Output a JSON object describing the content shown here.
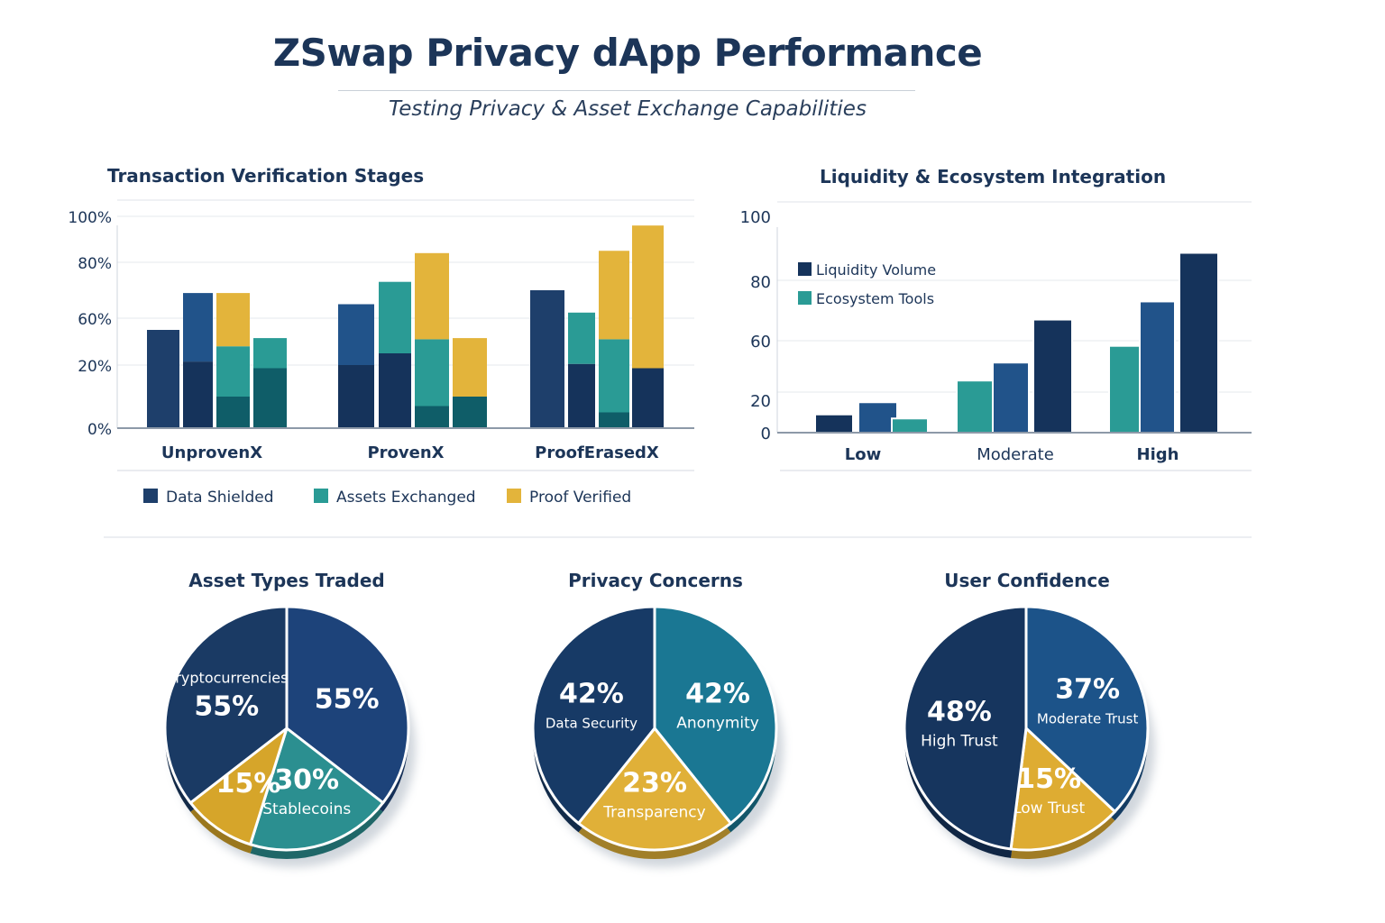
{
  "header": {
    "title": "ZSwap Privacy dApp Performance",
    "subtitle": "Testing Privacy & Asset Exchange Capabilities"
  },
  "colors": {
    "navy": "#1e3f6b",
    "navy_dark": "#15335b",
    "blue": "#21538a",
    "teal": "#2a9b95",
    "teal_dark": "#0f5d68",
    "gold": "#e3b43b",
    "text": "#1c3558"
  },
  "chart_data": [
    {
      "type": "bar",
      "title": "Transaction Verification Stages",
      "stacked": true,
      "grid": true,
      "legend_position": "bottom",
      "yticks": [
        "0%",
        "20%",
        "60%",
        "80%",
        "100%"
      ],
      "ytick_values": [
        0,
        20,
        60,
        80,
        100
      ],
      "ylim": [
        0,
        100
      ],
      "categories": [
        "UnprovenX",
        "ProvenX",
        "ProofErasedX"
      ],
      "legend": [
        {
          "name": "Data Shielded",
          "color": "#1e3f6b"
        },
        {
          "name": "Assets Exchanged",
          "color": "#2a9b95"
        },
        {
          "name": "Proof Verified",
          "color": "#e3b43b"
        }
      ],
      "bars": [
        [
          [
            {
              "series": "Data Shielded",
              "tone": "navy",
              "to": 50
            }
          ],
          [
            {
              "series": "Data Shielded",
              "tone": "navy_dark",
              "to": 23
            },
            {
              "series": "Data Shielded",
              "tone": "blue",
              "to": 69
            }
          ],
          [
            {
              "series": "Assets Exchanged",
              "tone": "teal_dark",
              "to": 10
            },
            {
              "series": "Assets Exchanged",
              "tone": "teal",
              "to": 36
            },
            {
              "series": "Proof Verified",
              "tone": "gold",
              "to": 69
            }
          ],
          [
            {
              "series": "Assets Exchanged",
              "tone": "teal_dark",
              "to": 19
            },
            {
              "series": "Assets Exchanged",
              "tone": "teal",
              "to": 43
            }
          ]
        ],
        [
          [
            {
              "series": "Data Shielded",
              "tone": "navy_dark",
              "to": 20
            },
            {
              "series": "Data Shielded",
              "tone": "blue",
              "to": 65
            }
          ],
          [
            {
              "series": "Data Shielded",
              "tone": "navy_dark",
              "to": 30
            },
            {
              "series": "Assets Exchanged",
              "tone": "teal",
              "to": 73
            }
          ],
          [
            {
              "series": "Assets Exchanged",
              "tone": "teal_dark",
              "to": 7
            },
            {
              "series": "Assets Exchanged",
              "tone": "teal",
              "to": 42
            },
            {
              "series": "Proof Verified",
              "tone": "gold",
              "to": 84
            }
          ],
          [
            {
              "series": "Assets Exchanged",
              "tone": "teal_dark",
              "to": 10
            },
            {
              "series": "Proof Verified",
              "tone": "gold",
              "to": 43
            }
          ]
        ],
        [
          [
            {
              "series": "Data Shielded",
              "tone": "navy",
              "to": 70
            }
          ],
          [
            {
              "series": "Data Shielded",
              "tone": "navy_dark",
              "to": 21
            },
            {
              "series": "Assets Exchanged",
              "tone": "teal",
              "to": 62
            }
          ],
          [
            {
              "series": "Assets Exchanged",
              "tone": "teal_dark",
              "to": 5
            },
            {
              "series": "Assets Exchanged",
              "tone": "teal",
              "to": 42
            },
            {
              "series": "Proof Verified",
              "tone": "gold",
              "to": 85
            }
          ],
          [
            {
              "series": "Data Shielded",
              "tone": "navy_dark",
              "to": 19
            },
            {
              "series": "Proof Verified",
              "tone": "gold",
              "to": 96
            }
          ]
        ]
      ]
    },
    {
      "type": "bar",
      "title": "Liquidity & Ecosystem Integration",
      "grid": true,
      "legend_position": "top-left",
      "yticks": [
        "0",
        "20",
        "60",
        "80",
        "100"
      ],
      "ytick_values": [
        0,
        20,
        60,
        80,
        100
      ],
      "ylim": [
        0,
        100
      ],
      "categories": [
        "Low",
        "Moderate",
        "High"
      ],
      "legend": [
        {
          "name": "Liquidity Volume",
          "color": "#15335b"
        },
        {
          "name": "Ecosystem Tools",
          "color": "#2a9b95"
        }
      ],
      "bars": [
        [
          {
            "series": "Liquidity Volume",
            "tone": "navy_dark",
            "value": 9
          },
          {
            "series": "Liquidity Volume",
            "tone": "blue",
            "value": 15
          },
          {
            "series": "Ecosystem Tools",
            "tone": "teal",
            "value": 7
          }
        ],
        [
          {
            "series": "Ecosystem Tools",
            "tone": "teal",
            "value": 29
          },
          {
            "series": "Liquidity Volume",
            "tone": "blue",
            "value": 43
          },
          {
            "series": "Liquidity Volume",
            "tone": "navy_dark",
            "value": 67
          }
        ],
        [
          {
            "series": "Ecosystem Tools",
            "tone": "teal",
            "value": 56
          },
          {
            "series": "Liquidity Volume",
            "tone": "blue",
            "value": 73
          },
          {
            "series": "Liquidity Volume",
            "tone": "navy_dark",
            "value": 90
          }
        ]
      ]
    },
    {
      "type": "pie",
      "title": "Asset Types Traded",
      "slices": [
        {
          "label": "",
          "value": 55,
          "value_label": "55%",
          "color": "#1d437a"
        },
        {
          "label": "Stablecoins",
          "value": 30,
          "value_label": "30%",
          "color": "#2b8f90"
        },
        {
          "label": "",
          "value": 15,
          "value_label": "15%",
          "color": "#d6a52a"
        },
        {
          "label": "Cryptocurrencies",
          "value": 55,
          "value_label": "55%",
          "color": "#1a3a64"
        }
      ]
    },
    {
      "type": "pie",
      "title": "Privacy Concerns",
      "slices": [
        {
          "label": "Anonymity",
          "value": 42,
          "value_label": "42%",
          "color": "#1a7793"
        },
        {
          "label": "Transparency",
          "value": 23,
          "value_label": "23%",
          "color": "#e0b038"
        },
        {
          "label": "Data Security",
          "value": 42,
          "value_label": "42%",
          "color": "#173a66"
        }
      ]
    },
    {
      "type": "pie",
      "title": "User Confidence",
      "slices": [
        {
          "label": "Moderate Trust",
          "value": 37,
          "value_label": "37%",
          "color": "#1c5389"
        },
        {
          "label": "Low Trust",
          "value": 15,
          "value_label": "15%",
          "color": "#deac32"
        },
        {
          "label": "High Trust",
          "value": 48,
          "value_label": "48%",
          "color": "#16355e"
        }
      ]
    }
  ]
}
